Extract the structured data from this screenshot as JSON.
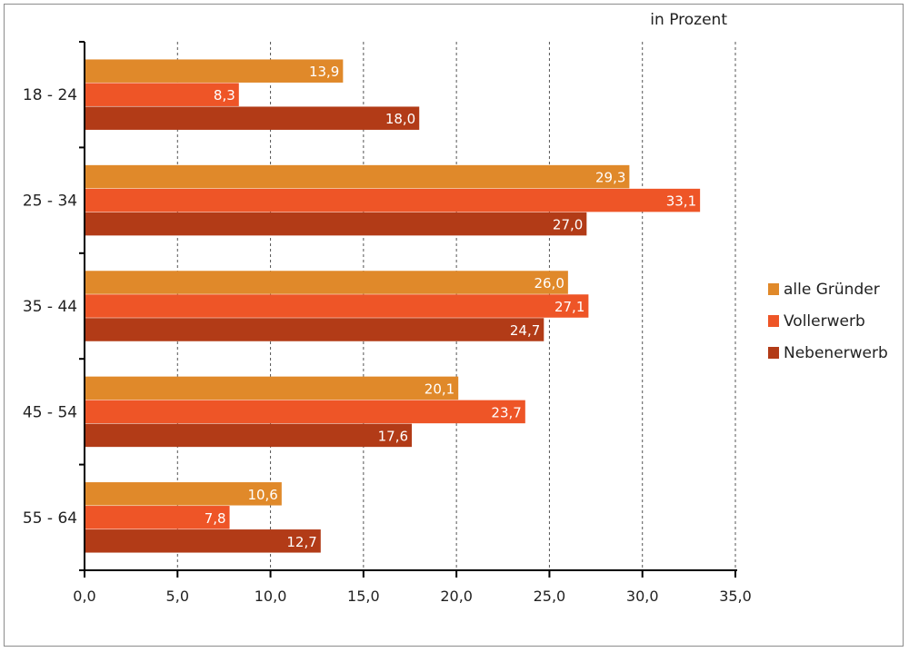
{
  "chart_data": {
    "type": "bar",
    "orientation": "horizontal",
    "unit_label": "in Prozent",
    "categories": [
      "18 - 24",
      "25 - 34",
      "35 - 44",
      "45 - 54",
      "55 - 64"
    ],
    "series": [
      {
        "name": "alle Gründer",
        "color": "#e0892a",
        "values": [
          13.9,
          29.3,
          26.0,
          20.1,
          10.6
        ],
        "labels": [
          "13,9",
          "29,3",
          "26,0",
          "20,1",
          "10,6"
        ]
      },
      {
        "name": "Vollerwerb",
        "color": "#ee5527",
        "values": [
          8.3,
          33.1,
          27.1,
          23.7,
          7.8
        ],
        "labels": [
          "8,3",
          "33,1",
          "27,1",
          "23,7",
          "7,8"
        ]
      },
      {
        "name": "Nebenerwerb",
        "color": "#b23b17",
        "values": [
          18.0,
          27.0,
          24.7,
          17.6,
          12.7
        ],
        "labels": [
          "18,0",
          "27,0",
          "24,7",
          "17,6",
          "12,7"
        ]
      }
    ],
    "x_ticks": [
      0,
      5,
      10,
      15,
      20,
      25,
      30,
      35
    ],
    "x_tick_labels": [
      "0,0",
      "5,0",
      "10,0",
      "15,0",
      "20,0",
      "25,0",
      "30,0",
      "35,0"
    ],
    "xlim": [
      0,
      35
    ],
    "grid": "vertical dashed",
    "legend_position": "right"
  }
}
